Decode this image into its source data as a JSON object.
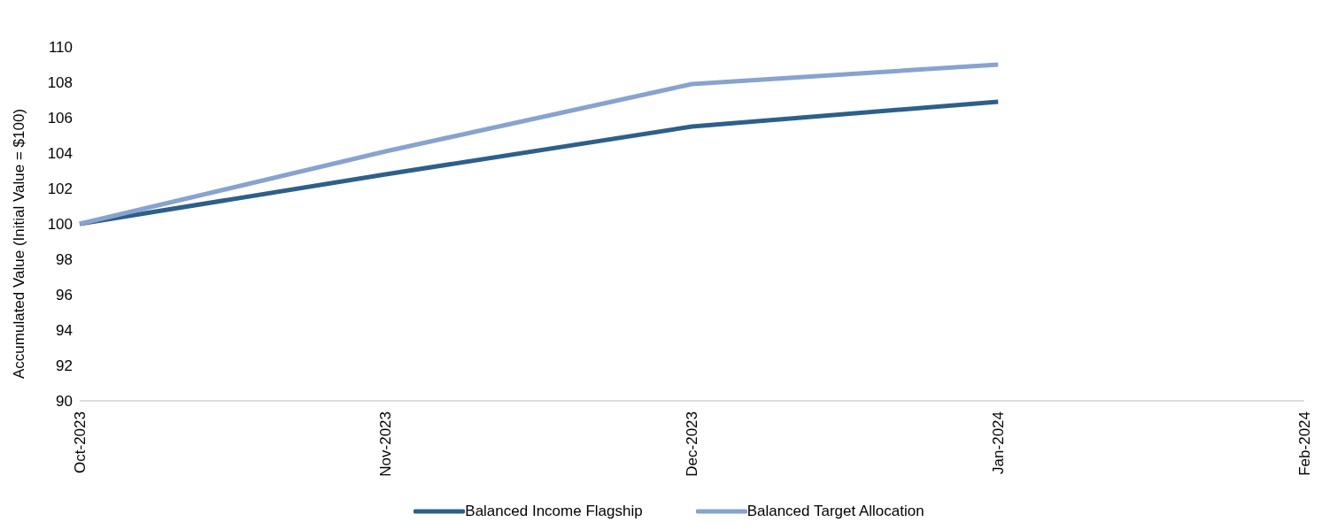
{
  "chart_data": {
    "type": "line",
    "ylabel": "Accumulated Value (Initial Value = $100)",
    "categories": [
      "Oct-2023",
      "Nov-2023",
      "Dec-2023",
      "Jan-2024",
      "Feb-2024"
    ],
    "series": [
      {
        "name": "Balanced Income Flagship",
        "color": "#2e5f8a",
        "values": [
          100,
          102.8,
          105.5,
          106.9,
          null
        ]
      },
      {
        "name": "Balanced Target Allocation",
        "color": "#87a3cf",
        "values": [
          100,
          104.1,
          107.9,
          109.0,
          null
        ]
      }
    ],
    "ylim": [
      90,
      110
    ],
    "yticks": [
      90,
      92,
      94,
      96,
      98,
      100,
      102,
      104,
      106,
      108,
      110
    ],
    "grid": false,
    "legend": "bottom",
    "marker": "none",
    "line_style": "solid"
  }
}
